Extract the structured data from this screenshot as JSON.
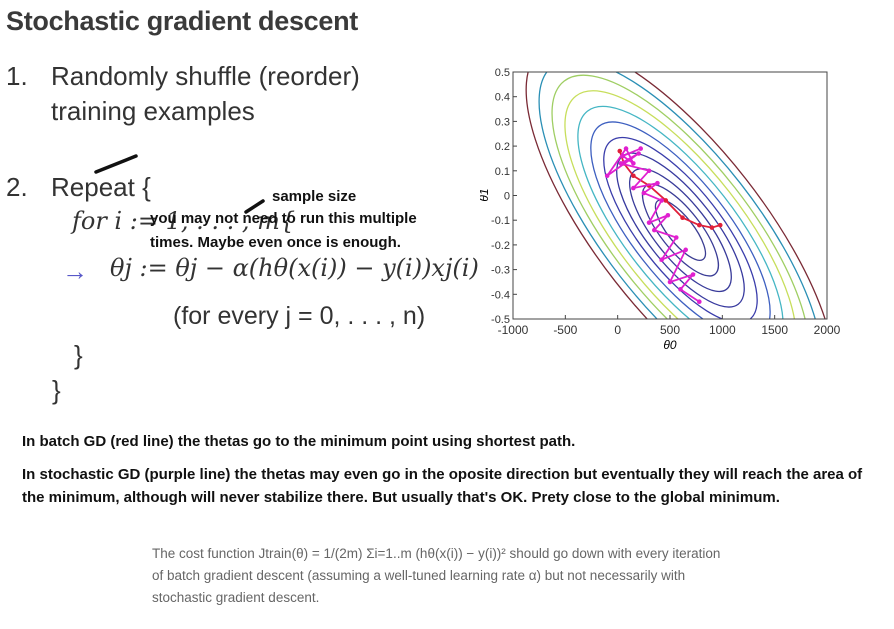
{
  "slide": {
    "title": "Stochastic gradient descent",
    "step1_num": "1.",
    "step1_line1": "Randomly shuffle (reorder)",
    "step1_line2": "training examples",
    "step2_num": "2.",
    "step2_text": "Repeat {",
    "for_line": "for i := 1, . . . , m{",
    "update_line": "θj := θj − α(hθ(x(i)) − y(i))xj(i)",
    "update_arrow": "→",
    "for_every": "(for every j = 0, . . . , n)",
    "inner_close": "}",
    "outer_close": "}"
  },
  "annotations": {
    "sample_size": "sample size",
    "note_line1": "you may not need to run this multiple",
    "note_line2": "times. Maybe even once is enough."
  },
  "notes": {
    "batch": "In batch GD (red line) the thetas go to the minimum point using shortest path.",
    "stochastic": "In stochastic GD (purple line) the thetas may even go in the oposite direction but eventually they will reach the area of the minimum, although will never stabilize there. But usually that's OK. Prety close to the global minimum."
  },
  "footer": {
    "text": "The cost function Jtrain(θ) = 1/(2m) Σi=1..m (hθ(x(i)) − y(i))² should go down with every iteration of batch gradient descent (assuming a well-tuned learning rate α) but not necessarily with stochastic gradient descent."
  },
  "chart_data": {
    "type": "line",
    "xlabel": "θ0",
    "ylabel": "θ1",
    "xlim": [
      -1000,
      2000
    ],
    "ylim": [
      -0.5,
      0.5
    ],
    "xticks": [
      "-1000",
      "-500",
      "0",
      "500",
      "1000",
      "1500",
      "2000"
    ],
    "yticks": [
      "0.5",
      "0.4",
      "0.3",
      "0.2",
      "0.1",
      "0",
      "-0.1",
      "-0.2",
      "-0.3",
      "-0.4",
      "-0.5"
    ],
    "grid": false,
    "series": [
      {
        "color": "#e0203a",
        "x": [
          980,
          900,
          780,
          620,
          460,
          300,
          150,
          60,
          20
        ],
        "y": [
          -0.12,
          -0.13,
          -0.12,
          -0.09,
          -0.02,
          0.04,
          0.08,
          0.13,
          0.18
        ]
      },
      {
        "color": "#e020d0",
        "x": [
          780,
          600,
          720,
          500,
          650,
          420,
          560,
          350,
          480,
          300,
          420,
          250,
          380,
          150,
          300,
          30,
          200,
          -100,
          80,
          150,
          50,
          220
        ],
        "y": [
          -0.43,
          -0.38,
          -0.32,
          -0.35,
          -0.22,
          -0.26,
          -0.17,
          -0.14,
          -0.08,
          -0.11,
          -0.02,
          0.01,
          0.05,
          0.03,
          0.1,
          0.13,
          0.17,
          0.08,
          0.19,
          0.13,
          0.16,
          0.19
        ]
      }
    ],
    "contours": {
      "center": [
        600,
        -0.14
      ],
      "levels": 11,
      "colors": [
        "#7a2a35",
        "#2a8fb5",
        "#9fce63",
        "#c7de5b",
        "#45b6c4",
        "#3d5fc0",
        "#3a3dab",
        "#383a9f",
        "#393b9a",
        "#3a3c96",
        "#3b3d92"
      ]
    }
  }
}
